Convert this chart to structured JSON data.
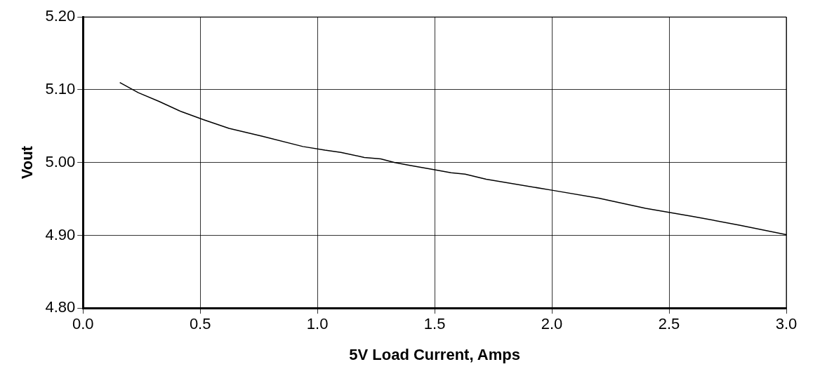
{
  "chart_data": {
    "type": "line",
    "xlabel": "5V Load Current, Amps",
    "ylabel": "Vout",
    "xlim": [
      0,
      3
    ],
    "ylim": [
      4.8,
      5.2
    ],
    "xticks": [
      {
        "value": 0,
        "label": "0.0"
      },
      {
        "value": 0.5,
        "label": "0.5"
      },
      {
        "value": 1,
        "label": "1.0"
      },
      {
        "value": 1.5,
        "label": "1.5"
      },
      {
        "value": 2,
        "label": "2.0"
      },
      {
        "value": 2.5,
        "label": "2.5"
      },
      {
        "value": 3,
        "label": "3.0"
      }
    ],
    "yticks": [
      {
        "value": 4.8,
        "label": "4.80"
      },
      {
        "value": 4.9,
        "label": "4.90"
      },
      {
        "value": 5,
        "label": "5.00"
      },
      {
        "value": 5.1,
        "label": "5.10"
      },
      {
        "value": 5.2,
        "label": "5.20"
      }
    ],
    "grid": true,
    "series": [
      {
        "color": "#000000",
        "x": [
          0.157,
          0.236,
          0.324,
          0.419,
          0.513,
          0.623,
          0.765,
          0.938,
          1.032,
          1.1,
          1.2,
          1.27,
          1.33,
          1.394,
          1.5,
          1.57,
          1.63,
          1.72,
          2.0,
          2.2,
          2.4,
          2.6,
          2.8,
          3.0
        ],
        "values": [
          5.11,
          5.096,
          5.084,
          5.07,
          5.059,
          5.047,
          5.036,
          5.022,
          5.017,
          5.014,
          5.007,
          5.005,
          5.0,
          4.996,
          4.99,
          4.986,
          4.984,
          4.977,
          4.962,
          4.951,
          4.937,
          4.926,
          4.914,
          4.901
        ]
      }
    ]
  }
}
